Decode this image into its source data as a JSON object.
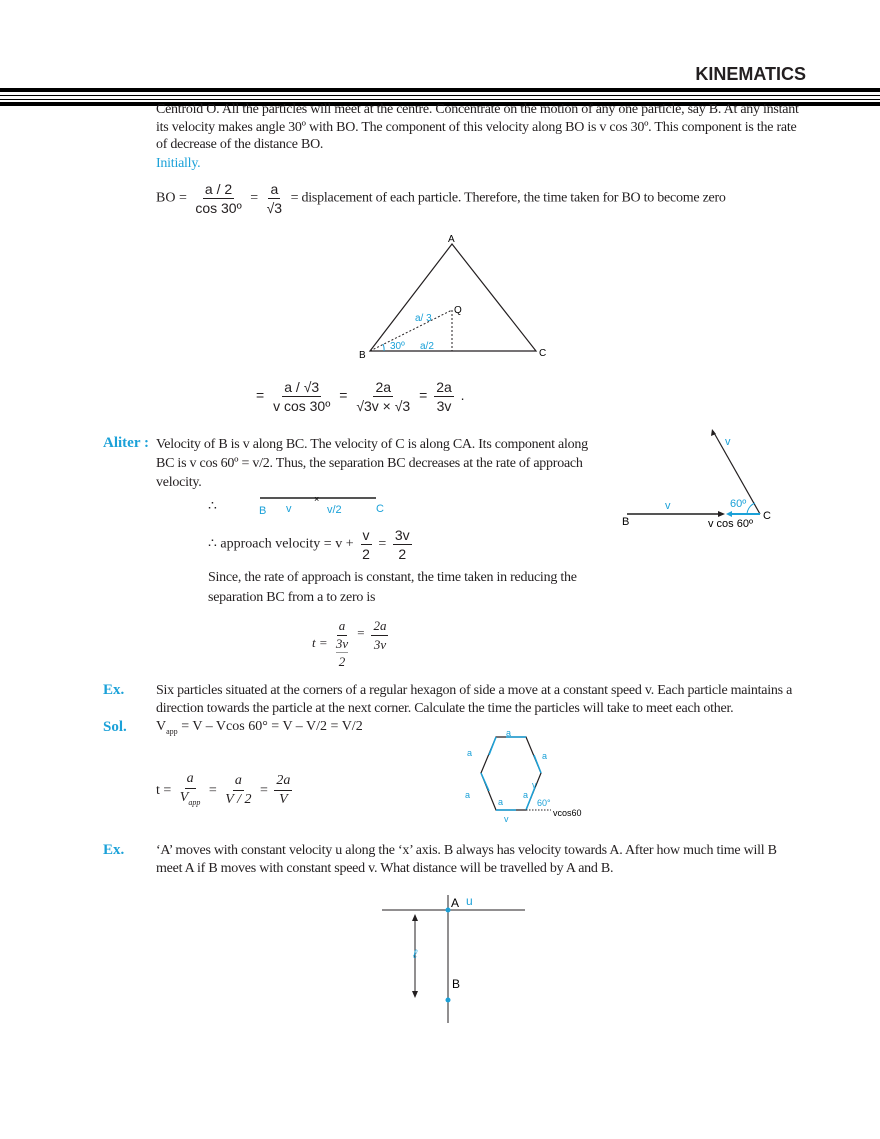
{
  "header": {
    "title": "KINEMATICS"
  },
  "intro": {
    "para": "Centroid O.  All the particles will meet at the centre. Concentrate on the motion of any one particle, say B. At any instant its velocity makes angle 30º with BO. The component of this velocity along BO is v cos 30º. This component is the rate of decrease of the distance BO.",
    "initially": "Initially.",
    "bo_lhs": "BO =",
    "bo_f1_num": "a / 2",
    "bo_f1_den": "cos 30º",
    "eq": "=",
    "bo_f2_num": "a",
    "bo_f2_den": "√3",
    "bo_rest": "= displacement of each particle. Therefore, the time taken for BO to become zero"
  },
  "triangle": {
    "A": "A",
    "B": "B",
    "C": "C",
    "Q": "Q",
    "bq": "a/  3",
    "half": "a/2",
    "angle": "30º"
  },
  "time1": {
    "f1_num": "a / √3",
    "f1_den": "v cos 30º",
    "f2_num": "2a",
    "f2_den": "√3v × √3",
    "f3_num": "2a",
    "f3_den": "3v",
    "end": "."
  },
  "aliter": {
    "label": "Aliter :",
    "para": "Velocity of B is v along BC. The velocity of C is along CA. Its component along BC is v cos 60º = v/2. Thus, the separation BC decreases at the rate of approach velocity.",
    "therefore": "∴",
    "line_B": "B",
    "line_v": "v",
    "line_v2": "v/2",
    "line_C": "C",
    "approach": "∴ approach velocity = v +",
    "ap_num": "v",
    "ap_den": "2",
    "ap_eq": "=",
    "ap_r_num": "3v",
    "ap_r_den": "2",
    "since": "Since, the rate of approach is constant, the time taken in reducing the separation BC from a to zero is",
    "t": "t =",
    "t_num": "a",
    "t_den_num": "3v",
    "t_den_den": "2",
    "t_eq": "=",
    "t_r_num": "2a",
    "t_r_den": "3v",
    "diagram": {
      "v_top": "v",
      "v_left": "v",
      "angle": "60º",
      "B": "B",
      "C": "C",
      "comp": "v cos 60º"
    }
  },
  "ex1": {
    "label": "Ex.",
    "text": "Six particles situated at the corners of a regular hexagon of side a move at a constant speed v. Each particle maintains a direction towards the particle at the next corner. Calculate the time the particles will take to meet each other.",
    "sol_label": "Sol.",
    "sol_V": "V",
    "sol_sub": "app",
    "sol_rest": "= V – Vcos 60°   = V – V/2 = V/2",
    "t": "t =",
    "f1_num": "a",
    "f1_den": "V",
    "f1_sub": "app",
    "f2_num": "a",
    "f2_den": "V / 2",
    "f3_num": "2a",
    "f3_den": "V",
    "eq": "=",
    "hexagon": {
      "a": "a",
      "v": "v",
      "angle": "60°",
      "comp": "vcos60"
    }
  },
  "ex2": {
    "label": "Ex.",
    "text": "‘A’ moves with constant velocity u along the ‘x’ axis. B always has velocity towards A. After how much time will B meet A if B moves with constant speed v. What distance will be travelled by A and B.",
    "diagram": {
      "A": "A",
      "u": "u",
      "l": "ℓ",
      "B": "B"
    }
  },
  "colors": {
    "accent": "#1ba1d8",
    "text": "#231f20"
  }
}
